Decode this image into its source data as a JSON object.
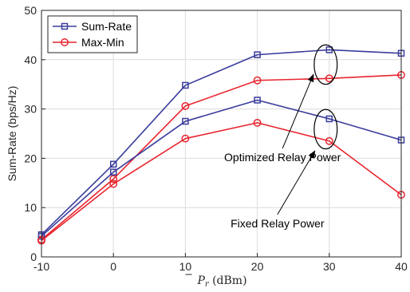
{
  "chart_data": {
    "type": "line",
    "x": [
      -10,
      0,
      10,
      20,
      30,
      40
    ],
    "xlim": [
      -10,
      40
    ],
    "ylim": [
      0,
      50
    ],
    "xticks": [
      "-10",
      "0",
      "10",
      "20",
      "30",
      "40"
    ],
    "yticks": [
      "0",
      "10",
      "20",
      "30",
      "40",
      "50"
    ],
    "xlabel": {
      "main": "P",
      "sub": "r",
      "unit": " (dBm)"
    },
    "ylabel": "Sum-Rate (bps/Hz)",
    "grid": true,
    "legend_position": "top-left",
    "series": [
      {
        "name": "Sum-Rate",
        "group": "Optimized Relay Power",
        "marker": "square",
        "color": "#3a3d9c",
        "values": [
          4.5,
          18.8,
          34.8,
          41.0,
          42.0,
          41.3
        ]
      },
      {
        "name": "Max-Min",
        "group": "Optimized Relay Power",
        "marker": "circle",
        "color": "#e8252f",
        "values": [
          3.5,
          15.8,
          30.6,
          35.8,
          36.2,
          36.9
        ]
      },
      {
        "name": "Sum-Rate",
        "group": "Fixed Relay Power",
        "marker": "square",
        "color": "#3a3d9c",
        "values": [
          4.2,
          17.2,
          27.5,
          31.8,
          28.0,
          23.7
        ]
      },
      {
        "name": "Max-Min",
        "group": "Fixed Relay Power",
        "marker": "circle",
        "color": "#e8252f",
        "values": [
          3.3,
          14.8,
          24.0,
          27.2,
          23.5,
          12.6
        ]
      }
    ],
    "legend": [
      {
        "label": "Sum-Rate",
        "marker": "square",
        "color": "#3a3d9c"
      },
      {
        "label": "Max-Min",
        "marker": "circle",
        "color": "#e8252f"
      }
    ],
    "annotations": [
      {
        "text": "Optimized Relay Power",
        "ellipse_center": [
          29.5,
          39.0
        ],
        "ellipse_rx": 1.6,
        "ellipse_ry": 4.0,
        "arrow_tip": [
          27.8,
          37.0
        ],
        "arrow_tail": [
          23.5,
          22.0
        ]
      },
      {
        "text": "Fixed Relay Power",
        "ellipse_center": [
          29.5,
          25.9
        ],
        "ellipse_rx": 1.6,
        "ellipse_ry": 4.0,
        "arrow_tip": [
          28.0,
          21.5
        ],
        "arrow_tail": [
          22.8,
          8.6
        ]
      }
    ]
  }
}
